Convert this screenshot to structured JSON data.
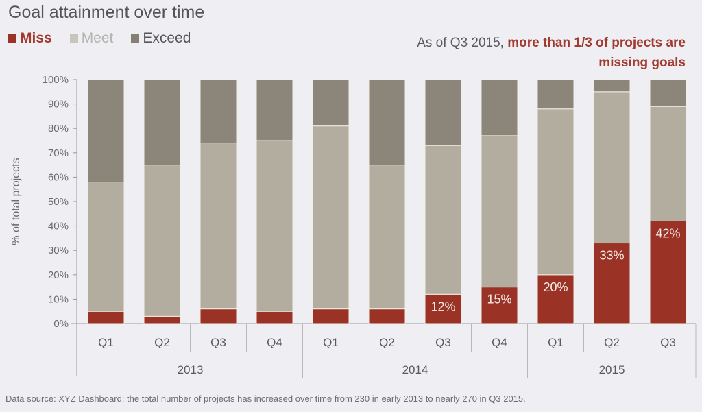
{
  "chart_data": {
    "type": "bar",
    "stacked": true,
    "title": "Goal attainment over time",
    "ylabel": "% of total projects",
    "xlabel": "",
    "ylim": [
      0,
      100
    ],
    "yticks": [
      "0%",
      "10%",
      "20%",
      "30%",
      "40%",
      "50%",
      "60%",
      "70%",
      "80%",
      "90%",
      "100%"
    ],
    "grid": false,
    "legend_position": "top-left",
    "categories": [
      "Q1",
      "Q2",
      "Q3",
      "Q4",
      "Q1",
      "Q2",
      "Q3",
      "Q4",
      "Q1",
      "Q2",
      "Q3"
    ],
    "groups": [
      {
        "label": "2013",
        "count": 4
      },
      {
        "label": "2014",
        "count": 4
      },
      {
        "label": "2015",
        "count": 3
      }
    ],
    "series": [
      {
        "name": "Miss",
        "color": "#9b3226",
        "values": [
          5,
          3,
          6,
          5,
          6,
          6,
          12,
          15,
          20,
          33,
          42
        ]
      },
      {
        "name": "Meet",
        "color": "#b3ada0",
        "values": [
          53,
          62,
          68,
          70,
          75,
          59,
          61,
          62,
          68,
          62,
          47
        ]
      },
      {
        "name": "Exceed",
        "color": "#8b857a",
        "values": [
          42,
          35,
          26,
          25,
          19,
          35,
          27,
          23,
          12,
          5,
          11
        ]
      }
    ],
    "data_labels": [
      "",
      "",
      "",
      "",
      "",
      "",
      "12%",
      "15%",
      "20%",
      "33%",
      "42%"
    ],
    "annotation": {
      "prefix": "As of Q3 2015, ",
      "highlight": "more than 1/3 of projects are missing goals"
    },
    "footnote": "Data source: XYZ Dashboard; the total number of projects has increased over time from 230 in early 2013 to nearly 270 in Q3 2015."
  },
  "legend": [
    {
      "label": "Miss",
      "color": "#9b3226",
      "text_color": "#a23a30",
      "bold": true
    },
    {
      "label": "Meet",
      "color": "#c9c5bb",
      "text_color": "#b5b3ae",
      "bold": false
    },
    {
      "label": "Exceed",
      "color": "#857f74",
      "text_color": "#55555a",
      "bold": false
    }
  ]
}
